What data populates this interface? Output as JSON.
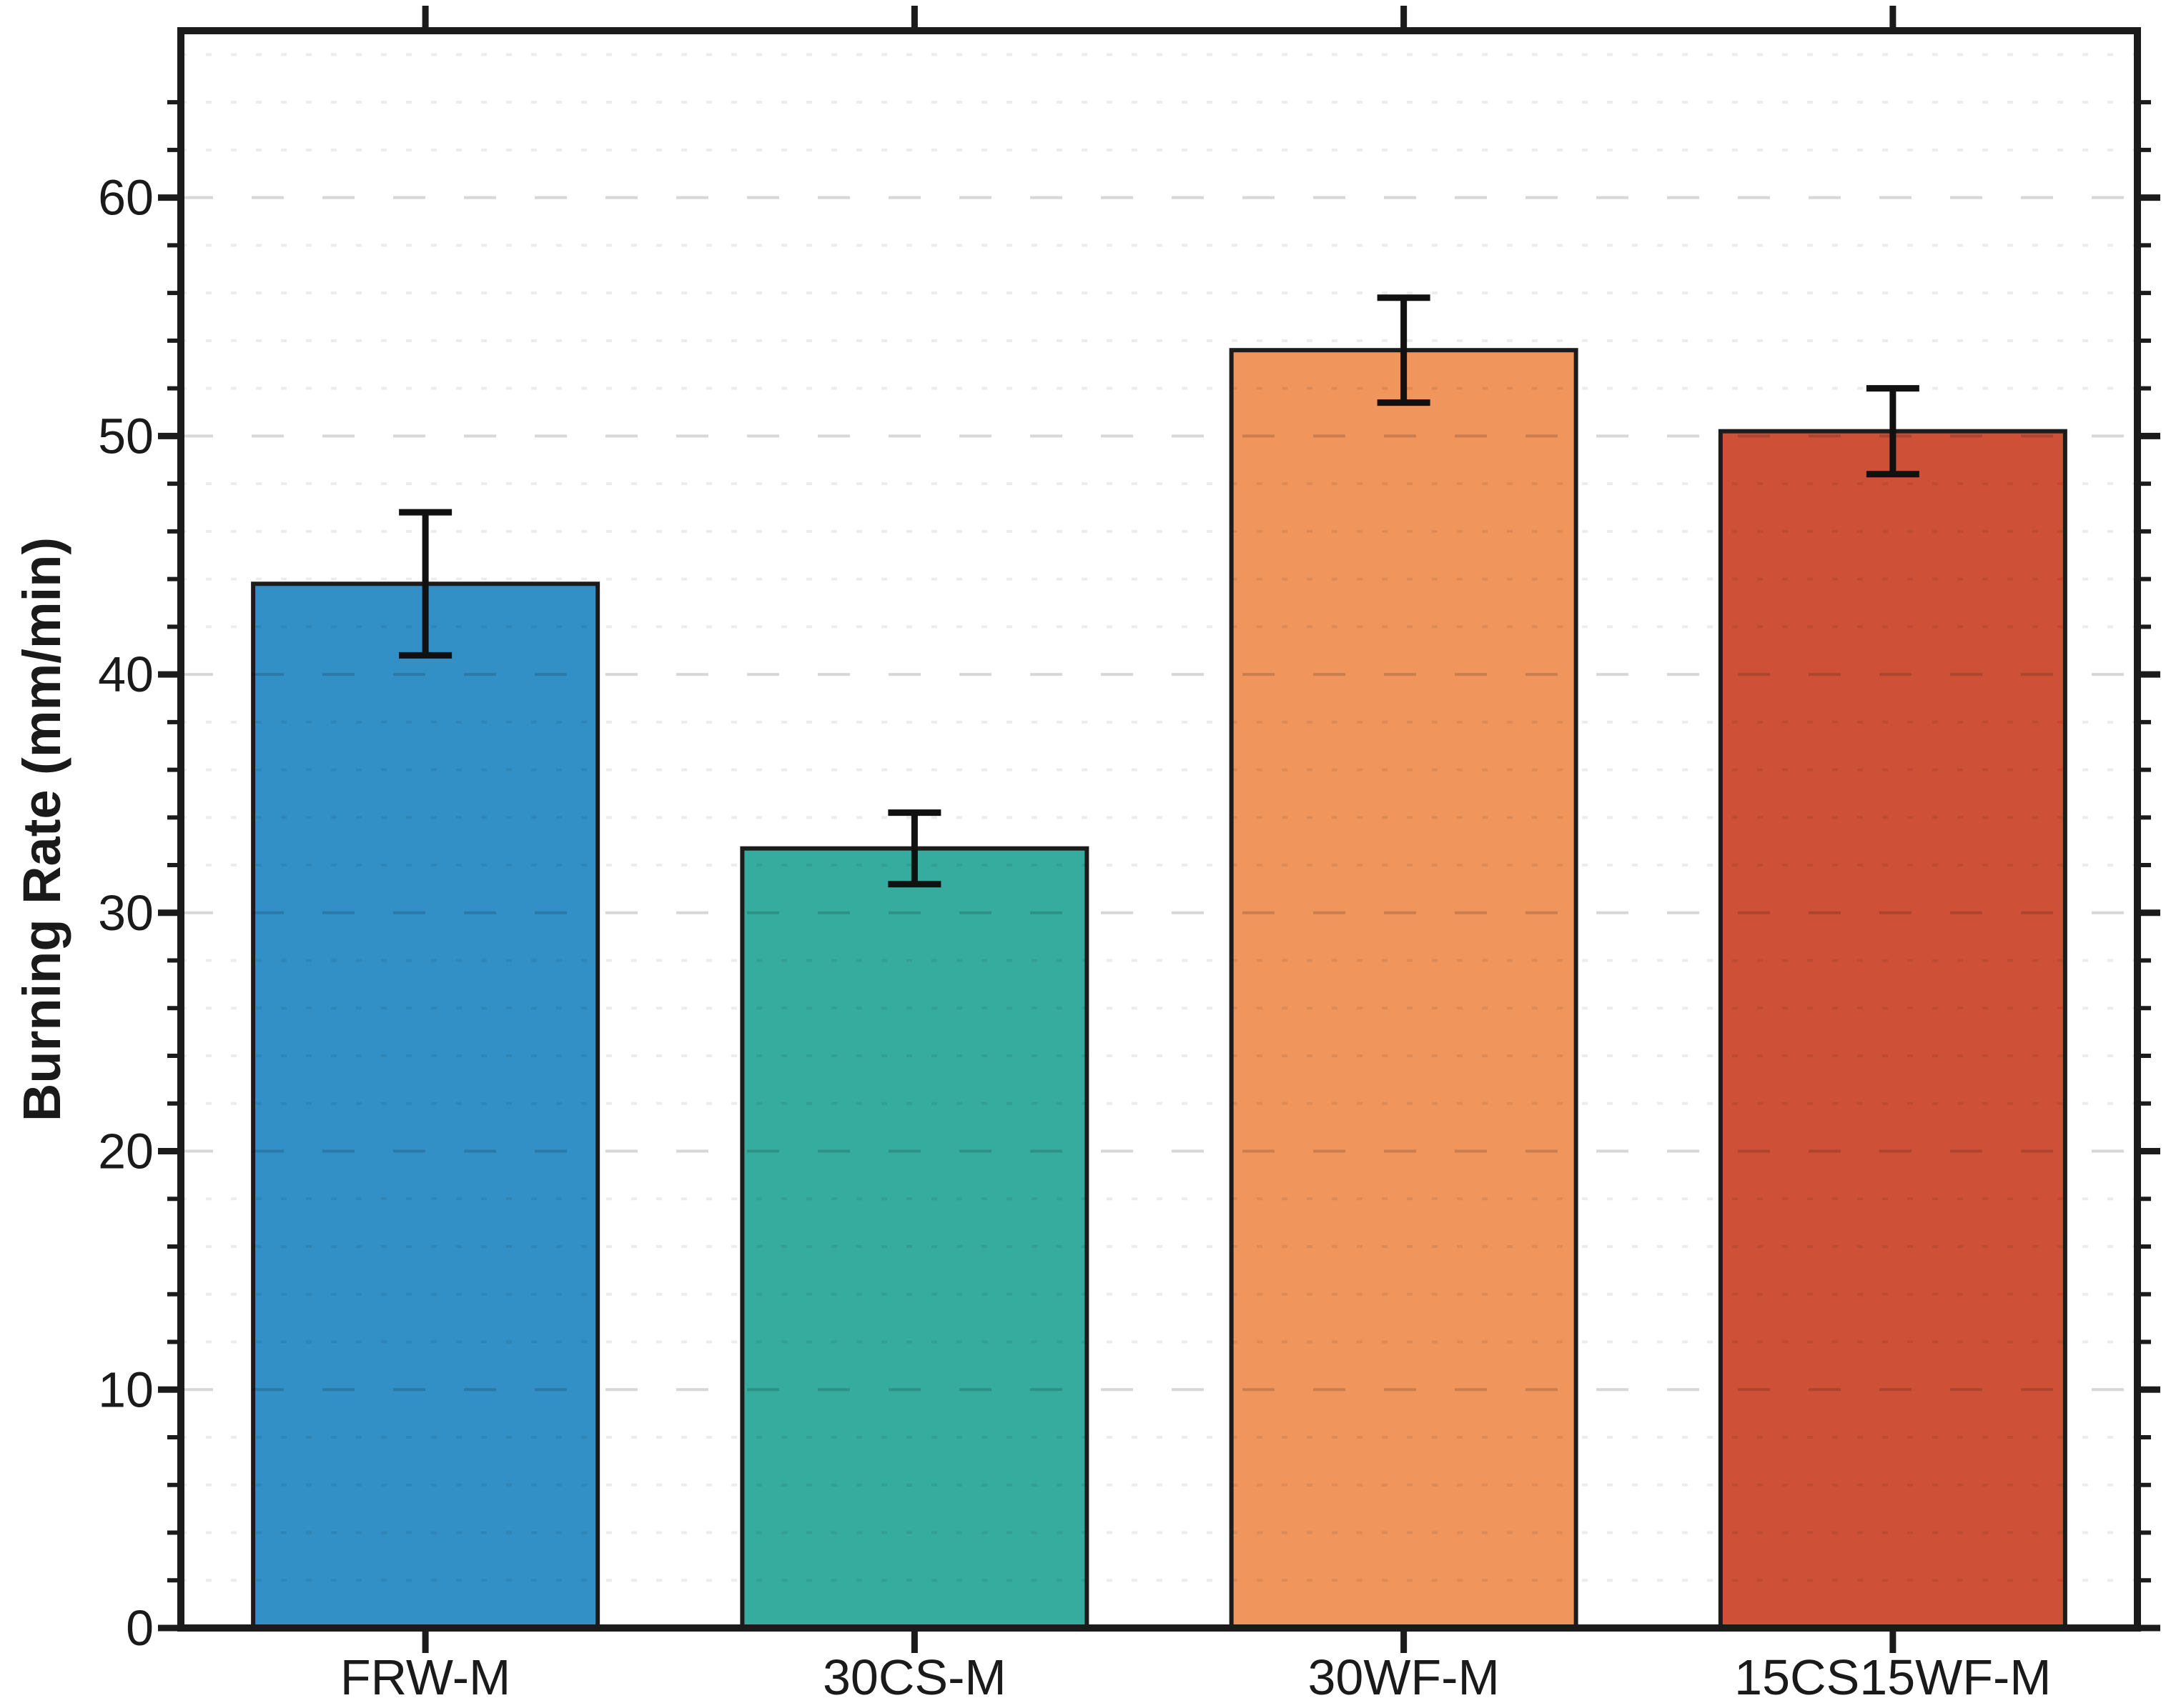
{
  "chart_data": {
    "type": "bar",
    "title": "",
    "xlabel": "",
    "ylabel": "Burning Rate (mm/min)",
    "categories": [
      "FRW-M",
      "30CS-M",
      "30WF-M",
      "15CS15WF-M"
    ],
    "series": [
      {
        "name": "Burning Rate",
        "values": [
          43.8,
          32.7,
          53.6,
          50.2
        ],
        "errors": [
          3.0,
          1.5,
          2.2,
          1.8
        ]
      }
    ],
    "bar_colors": [
      "#3290C7",
      "#36AC9F",
      "#F0965D",
      "#CE5137"
    ],
    "bar_edge_color": "#1c1c1c",
    "error_bar_color": "#111111",
    "axis_color": "#1b1b1b",
    "text_color": "#1a1a1a",
    "major_grid_color": "rgba(0,0,0,0.155)",
    "minor_grid_color": "rgba(0,0,0,0.075)",
    "grid": {
      "major_style": "dashed",
      "minor_style": "dotted"
    },
    "ylim": [
      0,
      67
    ],
    "yticks_major": [
      0,
      10,
      20,
      30,
      40,
      50,
      60
    ],
    "minor_tick_step": 2,
    "legend": null
  }
}
